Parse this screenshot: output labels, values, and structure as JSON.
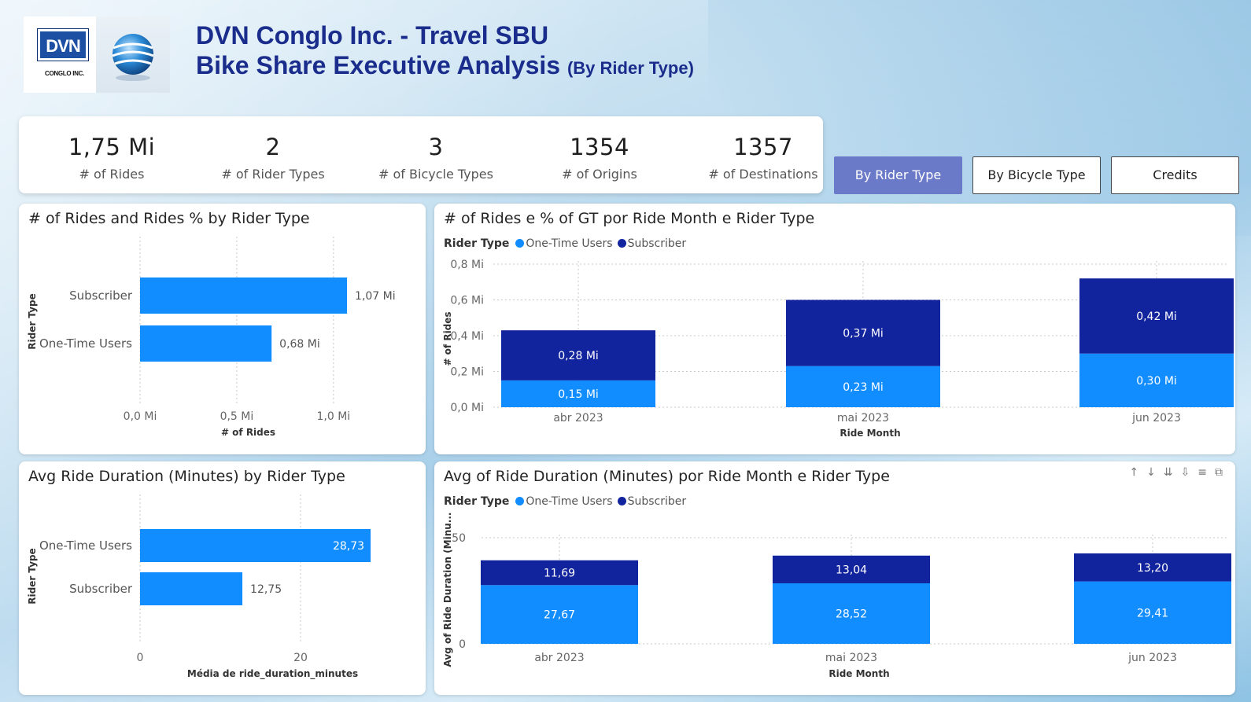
{
  "header": {
    "logo_text": "DVN",
    "logo_subtext": "CONGLO INC.",
    "title_line1": "DVN Conglo Inc. - Travel SBU",
    "title_line2": "Bike Share Executive Analysis",
    "title_suffix": "(By Rider Type)"
  },
  "kpis": [
    {
      "value": "1,75 Mi",
      "label": "# of Rides"
    },
    {
      "value": "2",
      "label": "# of Rider Types"
    },
    {
      "value": "3",
      "label": "# of Bicycle Types"
    },
    {
      "value": "1354",
      "label": "# of Origins"
    },
    {
      "value": "1357",
      "label": "# of Destinations"
    }
  ],
  "nav": {
    "by_rider": "By Rider Type",
    "by_bicycle": "By Bicycle Type",
    "credits": "Credits"
  },
  "colors": {
    "one_time": "#118dff",
    "subscriber": "#12239e",
    "active_nav": "#6b79c9"
  },
  "legend": {
    "title": "Rider Type",
    "one_time": "One-Time Users",
    "subscriber": "Subscriber"
  },
  "panels": {
    "rides_by_type": "# of Rides and Rides % by Rider Type",
    "rides_by_month": "# of Rides e % of GT por Ride Month e Rider Type",
    "avg_by_type": "Avg Ride Duration (Minutes) by Rider Type",
    "avg_by_month": "Avg of Ride Duration (Minutes) por Ride Month e Rider Type"
  },
  "chart_data": [
    {
      "type": "bar",
      "orientation": "horizontal",
      "title": "# of Rides and Rides % by Rider Type",
      "categories": [
        "Subscriber",
        "One-Time Users"
      ],
      "values": [
        1.07,
        0.68
      ],
      "data_labels": [
        "1,07 Mi",
        "0,68 Mi"
      ],
      "xlabel": "# of Rides",
      "ylabel": "Rider Type",
      "xticks": [
        "0,0 Mi",
        "0,5 Mi",
        "1,0 Mi"
      ],
      "xlim": [
        0,
        1.2
      ],
      "grid": true
    },
    {
      "type": "bar",
      "stacked": true,
      "title": "# of Rides e % of GT por Ride Month e Rider Type",
      "categories": [
        "abr 2023",
        "mai 2023",
        "jun 2023"
      ],
      "series": [
        {
          "name": "One-Time Users",
          "values": [
            0.15,
            0.23,
            0.3
          ],
          "labels": [
            "0,15 Mi",
            "0,23 Mi",
            "0,30 Mi"
          ]
        },
        {
          "name": "Subscriber",
          "values": [
            0.28,
            0.37,
            0.42
          ],
          "labels": [
            "0,28 Mi",
            "0,37 Mi",
            "0,42 Mi"
          ]
        }
      ],
      "xlabel": "Ride Month",
      "ylabel": "# of Rides",
      "yticks": [
        "0,0 Mi",
        "0,2 Mi",
        "0,4 Mi",
        "0,6 Mi",
        "0,8 Mi"
      ],
      "ylim": [
        0,
        0.8
      ],
      "legend": "top-left",
      "grid": true
    },
    {
      "type": "bar",
      "orientation": "horizontal",
      "title": "Avg Ride Duration (Minutes) by Rider Type",
      "categories": [
        "One-Time Users",
        "Subscriber"
      ],
      "values": [
        28.73,
        12.75
      ],
      "data_labels": [
        "28,73",
        "12,75"
      ],
      "xlabel": "Média de ride_duration_minutes",
      "ylabel": "Rider Type",
      "xticks": [
        "0",
        "20"
      ],
      "xlim": [
        0,
        35
      ],
      "grid": true
    },
    {
      "type": "bar",
      "stacked": true,
      "title": "Avg of Ride Duration (Minutes) por Ride Month e Rider Type",
      "categories": [
        "abr 2023",
        "mai 2023",
        "jun 2023"
      ],
      "series": [
        {
          "name": "One-Time Users",
          "values": [
            27.67,
            28.52,
            29.41
          ],
          "labels": [
            "27,67",
            "28,52",
            "29,41"
          ]
        },
        {
          "name": "Subscriber",
          "values": [
            11.69,
            13.04,
            13.2
          ],
          "labels": [
            "11,69",
            "13,04",
            "13,20"
          ]
        }
      ],
      "xlabel": "Ride Month",
      "ylabel": "Avg of Ride Duration (Minu...",
      "yticks": [
        "0",
        "50"
      ],
      "ylim": [
        0,
        50
      ],
      "legend": "top-left",
      "grid": true
    }
  ],
  "toolbar_icons": [
    "sort-up-icon",
    "sort-down-icon",
    "drill-down-icon",
    "expand-hierarchy-icon",
    "filter-icon",
    "focus-mode-icon"
  ]
}
